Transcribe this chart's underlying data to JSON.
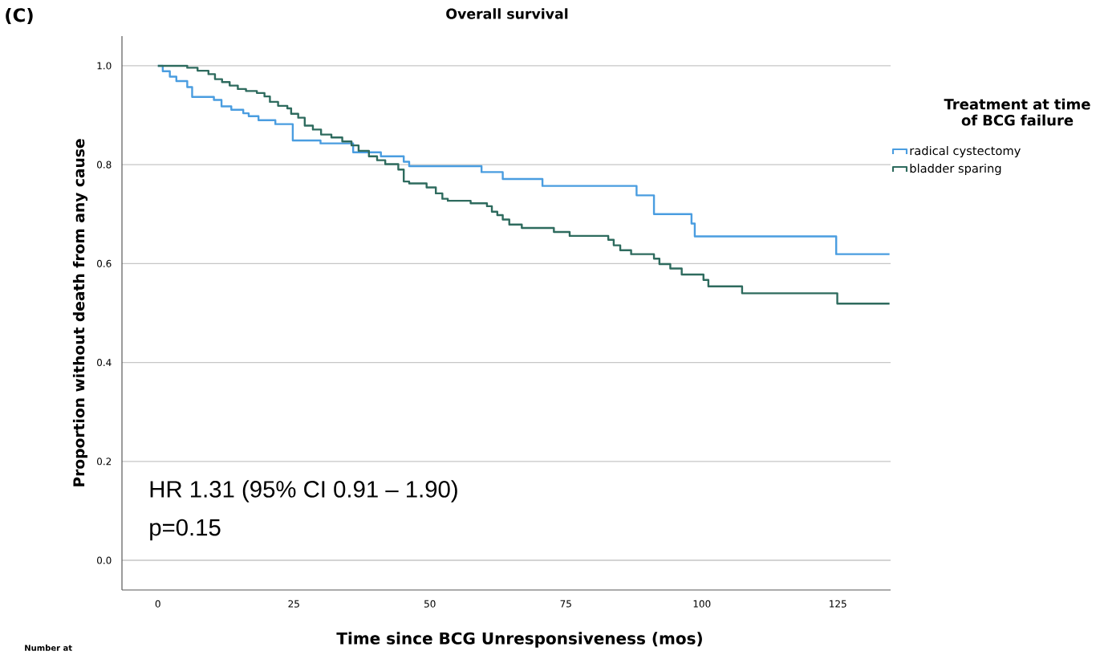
{
  "chart_data": {
    "type": "step",
    "title": "Overall survival",
    "xlabel": "Time since BCG Unresponsiveness (mos)",
    "ylabel": "Proportion without death from any cause",
    "legend_title": "Treatment at time of BCG failure",
    "legend": "top right",
    "grid": "y",
    "annotations": [
      "(C)",
      "HR 1.31 (95% CI 0.91 – 1.90)",
      "p=0.15",
      "Number at"
    ],
    "xlim": [
      -6.6,
      134.7
    ],
    "ylim": [
      -0.06,
      1.06
    ],
    "xticks": [
      0,
      25,
      50,
      75,
      100,
      125
    ],
    "yticks": [
      {
        "value": 0,
        "label": "0.0"
      },
      {
        "value": 0.2,
        "label": "0.2"
      },
      {
        "value": 0.4,
        "label": "0.4"
      },
      {
        "value": 0.6,
        "label": "0.6"
      },
      {
        "value": 0.8,
        "label": "0.8"
      },
      {
        "value": 1,
        "label": "1.0"
      }
    ],
    "series": [
      {
        "name": "radical cystectomy",
        "color": "#4a9de0",
        "x": [
          0,
          0.9,
          2.2,
          3.4,
          5.4,
          6.3,
          10.3,
          11.7,
          13.5,
          15.7,
          16.7,
          18.5,
          21.6,
          24.8,
          29.9,
          35.9,
          41.0,
          45.2,
          46.2,
          59.5,
          63.4,
          70.7,
          88.0,
          91.2,
          98.1,
          98.7,
          124.7,
          134.5
        ],
        "values": [
          1.0,
          0.989,
          0.978,
          0.969,
          0.957,
          0.937,
          0.931,
          0.918,
          0.911,
          0.904,
          0.898,
          0.89,
          0.882,
          0.849,
          0.843,
          0.825,
          0.817,
          0.806,
          0.797,
          0.785,
          0.771,
          0.757,
          0.738,
          0.7,
          0.681,
          0.655,
          0.619,
          0.619
        ]
      },
      {
        "name": "bladder sparing",
        "color": "#2e6b5e",
        "x": [
          0,
          5.4,
          7.3,
          9.3,
          10.5,
          11.8,
          13.2,
          14.7,
          16.2,
          18.2,
          19.6,
          20.6,
          22.1,
          23.8,
          24.5,
          25.8,
          27.0,
          28.5,
          30.0,
          31.9,
          33.9,
          35.6,
          36.9,
          38.8,
          40.3,
          41.8,
          44.2,
          45.2,
          46.2,
          49.4,
          51.1,
          52.3,
          53.3,
          57.5,
          60.5,
          61.4,
          62.4,
          63.4,
          64.6,
          66.9,
          72.8,
          75.7,
          82.8,
          83.8,
          85.0,
          87.0,
          91.2,
          92.2,
          94.2,
          96.3,
          100.3,
          101.2,
          107.4,
          124.9,
          134.5
        ],
        "values": [
          1.0,
          0.996,
          0.99,
          0.983,
          0.973,
          0.967,
          0.96,
          0.953,
          0.949,
          0.945,
          0.938,
          0.927,
          0.919,
          0.914,
          0.903,
          0.895,
          0.879,
          0.871,
          0.861,
          0.855,
          0.847,
          0.839,
          0.828,
          0.817,
          0.809,
          0.801,
          0.79,
          0.766,
          0.762,
          0.754,
          0.742,
          0.731,
          0.727,
          0.722,
          0.716,
          0.705,
          0.698,
          0.689,
          0.679,
          0.672,
          0.664,
          0.656,
          0.648,
          0.637,
          0.627,
          0.619,
          0.61,
          0.599,
          0.59,
          0.578,
          0.567,
          0.554,
          0.54,
          0.519,
          0.519
        ]
      }
    ]
  }
}
